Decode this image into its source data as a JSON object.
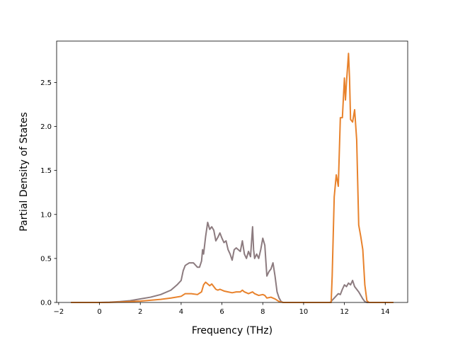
{
  "chart_data": {
    "type": "line",
    "title": "",
    "xlabel": "Frequency (THz)",
    "ylabel": "Partial Density of States",
    "xlim": [
      -2.1,
      15.1
    ],
    "ylim": [
      0.0,
      2.97
    ],
    "xticks": [
      -2,
      0,
      2,
      4,
      6,
      8,
      10,
      12,
      14
    ],
    "xtick_labels": [
      "−2",
      "0",
      "2",
      "4",
      "6",
      "8",
      "10",
      "12",
      "14"
    ],
    "yticks": [
      0.0,
      0.5,
      1.0,
      1.5,
      2.0,
      2.5
    ],
    "ytick_labels": [
      "0.0",
      "0.5",
      "1.0",
      "1.5",
      "2.0",
      "2.5"
    ],
    "grid": false,
    "legend": "none",
    "series": [
      {
        "color": "#8c7b7f",
        "points": [
          [
            -1.4,
            0.0
          ],
          [
            0.0,
            0.0
          ],
          [
            0.5,
            0.003
          ],
          [
            1.0,
            0.01
          ],
          [
            1.5,
            0.02
          ],
          [
            2.0,
            0.04
          ],
          [
            2.5,
            0.06
          ],
          [
            3.0,
            0.09
          ],
          [
            3.5,
            0.14
          ],
          [
            3.8,
            0.2
          ],
          [
            4.0,
            0.25
          ],
          [
            4.1,
            0.36
          ],
          [
            4.2,
            0.42
          ],
          [
            4.4,
            0.45
          ],
          [
            4.6,
            0.45
          ],
          [
            4.8,
            0.4
          ],
          [
            4.9,
            0.4
          ],
          [
            5.0,
            0.47
          ],
          [
            5.05,
            0.6
          ],
          [
            5.1,
            0.55
          ],
          [
            5.2,
            0.75
          ],
          [
            5.3,
            0.91
          ],
          [
            5.4,
            0.83
          ],
          [
            5.5,
            0.86
          ],
          [
            5.6,
            0.82
          ],
          [
            5.7,
            0.7
          ],
          [
            5.8,
            0.74
          ],
          [
            5.9,
            0.79
          ],
          [
            6.0,
            0.73
          ],
          [
            6.1,
            0.68
          ],
          [
            6.2,
            0.7
          ],
          [
            6.3,
            0.6
          ],
          [
            6.4,
            0.55
          ],
          [
            6.5,
            0.48
          ],
          [
            6.6,
            0.6
          ],
          [
            6.7,
            0.62
          ],
          [
            6.8,
            0.6
          ],
          [
            6.9,
            0.58
          ],
          [
            7.0,
            0.7
          ],
          [
            7.1,
            0.55
          ],
          [
            7.2,
            0.5
          ],
          [
            7.3,
            0.58
          ],
          [
            7.4,
            0.52
          ],
          [
            7.5,
            0.86
          ],
          [
            7.55,
            0.6
          ],
          [
            7.6,
            0.5
          ],
          [
            7.7,
            0.55
          ],
          [
            7.8,
            0.5
          ],
          [
            7.9,
            0.6
          ],
          [
            8.0,
            0.73
          ],
          [
            8.1,
            0.65
          ],
          [
            8.2,
            0.3
          ],
          [
            8.3,
            0.35
          ],
          [
            8.4,
            0.38
          ],
          [
            8.5,
            0.45
          ],
          [
            8.6,
            0.3
          ],
          [
            8.7,
            0.12
          ],
          [
            8.8,
            0.05
          ],
          [
            8.9,
            0.01
          ],
          [
            9.0,
            0.0
          ],
          [
            11.3,
            0.0
          ],
          [
            11.5,
            0.05
          ],
          [
            11.7,
            0.1
          ],
          [
            11.8,
            0.09
          ],
          [
            11.9,
            0.15
          ],
          [
            12.0,
            0.2
          ],
          [
            12.1,
            0.18
          ],
          [
            12.2,
            0.22
          ],
          [
            12.3,
            0.2
          ],
          [
            12.4,
            0.25
          ],
          [
            12.5,
            0.18
          ],
          [
            12.6,
            0.15
          ],
          [
            12.7,
            0.12
          ],
          [
            12.8,
            0.08
          ],
          [
            12.9,
            0.04
          ],
          [
            13.0,
            0.01
          ],
          [
            13.1,
            0.0
          ],
          [
            14.4,
            0.0
          ]
        ]
      },
      {
        "color": "#e8822c",
        "points": [
          [
            -1.4,
            0.0
          ],
          [
            0.0,
            0.0
          ],
          [
            0.5,
            0.001
          ],
          [
            1.0,
            0.005
          ],
          [
            1.5,
            0.01
          ],
          [
            2.0,
            0.015
          ],
          [
            2.5,
            0.025
          ],
          [
            3.0,
            0.035
          ],
          [
            3.5,
            0.05
          ],
          [
            4.0,
            0.07
          ],
          [
            4.2,
            0.1
          ],
          [
            4.5,
            0.1
          ],
          [
            4.8,
            0.09
          ],
          [
            5.0,
            0.12
          ],
          [
            5.1,
            0.2
          ],
          [
            5.2,
            0.23
          ],
          [
            5.4,
            0.19
          ],
          [
            5.5,
            0.21
          ],
          [
            5.6,
            0.18
          ],
          [
            5.7,
            0.15
          ],
          [
            5.8,
            0.14
          ],
          [
            5.9,
            0.15
          ],
          [
            6.1,
            0.13
          ],
          [
            6.3,
            0.12
          ],
          [
            6.5,
            0.11
          ],
          [
            6.7,
            0.12
          ],
          [
            6.9,
            0.12
          ],
          [
            7.0,
            0.14
          ],
          [
            7.1,
            0.12
          ],
          [
            7.3,
            0.1
          ],
          [
            7.5,
            0.12
          ],
          [
            7.6,
            0.1
          ],
          [
            7.8,
            0.08
          ],
          [
            8.0,
            0.09
          ],
          [
            8.1,
            0.08
          ],
          [
            8.2,
            0.05
          ],
          [
            8.4,
            0.06
          ],
          [
            8.6,
            0.04
          ],
          [
            8.8,
            0.01
          ],
          [
            9.0,
            0.0
          ],
          [
            11.35,
            0.0
          ],
          [
            11.4,
            0.3
          ],
          [
            11.5,
            1.2
          ],
          [
            11.6,
            1.45
          ],
          [
            11.7,
            1.32
          ],
          [
            11.8,
            2.1
          ],
          [
            11.9,
            2.1
          ],
          [
            12.0,
            2.55
          ],
          [
            12.05,
            2.3
          ],
          [
            12.1,
            2.5
          ],
          [
            12.2,
            2.83
          ],
          [
            12.25,
            2.55
          ],
          [
            12.3,
            2.08
          ],
          [
            12.4,
            2.05
          ],
          [
            12.5,
            2.19
          ],
          [
            12.6,
            1.85
          ],
          [
            12.7,
            0.88
          ],
          [
            12.8,
            0.75
          ],
          [
            12.9,
            0.6
          ],
          [
            13.0,
            0.2
          ],
          [
            13.1,
            0.02
          ],
          [
            13.2,
            0.0
          ],
          [
            14.4,
            0.0
          ]
        ]
      }
    ]
  }
}
